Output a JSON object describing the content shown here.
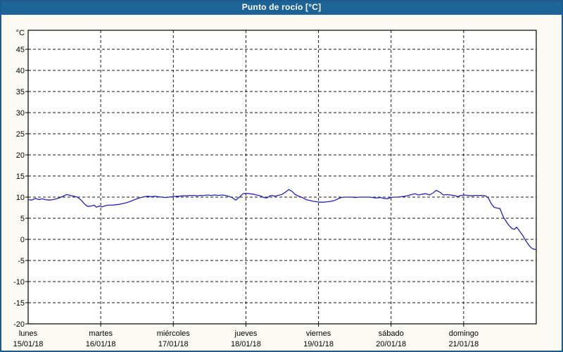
{
  "window": {
    "title": "Punto de rocío [°C]"
  },
  "colors": {
    "titlebar_bg": "#1E6396",
    "titlebar_text": "#FFFFFF",
    "window_border": "#1A5A8C",
    "page_bg": "#FBFBF3",
    "plot_bg": "#FFFFFF",
    "axis": "#000000",
    "gridline": "#1A1A1A",
    "series_line": "#2222BE"
  },
  "chart_data": {
    "type": "line",
    "title": "Punto de rocío [°C]",
    "unit_label": "°C",
    "ylabel": "°C",
    "ylim": [
      -20,
      49.5
    ],
    "y_ticks": [
      45,
      40,
      35,
      30,
      25,
      20,
      15,
      10,
      5,
      0,
      -5,
      -10,
      -15,
      -20
    ],
    "grid": "dashed",
    "legend_position": "none",
    "x_axis": {
      "days": [
        {
          "name": "lunes",
          "date": "15/01/18"
        },
        {
          "name": "martes",
          "date": "16/01/18"
        },
        {
          "name": "miércoles",
          "date": "17/01/18"
        },
        {
          "name": "jueves",
          "date": "18/01/18"
        },
        {
          "name": "viernes",
          "date": "19/01/18"
        },
        {
          "name": "sábado",
          "date": "20/01/18"
        },
        {
          "name": "domingo",
          "date": "21/01/18"
        }
      ]
    },
    "series": [
      {
        "name": "Punto de rocío",
        "color": "#2222BE",
        "points": [
          [
            0.0,
            9.4
          ],
          [
            0.05,
            9.3
          ],
          [
            0.1,
            9.7
          ],
          [
            0.15,
            9.4
          ],
          [
            0.19,
            9.6
          ],
          [
            0.24,
            9.4
          ],
          [
            0.29,
            9.3
          ],
          [
            0.34,
            9.4
          ],
          [
            0.39,
            9.6
          ],
          [
            0.44,
            9.9
          ],
          [
            0.48,
            10.2
          ],
          [
            0.53,
            10.6
          ],
          [
            0.58,
            10.4
          ],
          [
            0.63,
            10.2
          ],
          [
            0.68,
            10.0
          ],
          [
            0.73,
            9.3
          ],
          [
            0.78,
            8.3
          ],
          [
            0.82,
            7.8
          ],
          [
            0.87,
            7.9
          ],
          [
            0.91,
            8.1
          ],
          [
            0.94,
            7.6
          ],
          [
            0.98,
            7.9
          ],
          [
            1.02,
            7.7
          ],
          [
            1.07,
            8.0
          ],
          [
            1.11,
            8.1
          ],
          [
            1.16,
            8.1
          ],
          [
            1.21,
            8.2
          ],
          [
            1.26,
            8.3
          ],
          [
            1.31,
            8.5
          ],
          [
            1.36,
            8.7
          ],
          [
            1.41,
            9.0
          ],
          [
            1.45,
            9.3
          ],
          [
            1.5,
            9.6
          ],
          [
            1.55,
            9.9
          ],
          [
            1.6,
            10.1
          ],
          [
            1.65,
            10.2
          ],
          [
            1.7,
            10.1
          ],
          [
            1.75,
            10.2
          ],
          [
            1.79,
            10.1
          ],
          [
            1.84,
            10.0
          ],
          [
            1.89,
            9.9
          ],
          [
            1.94,
            10.0
          ],
          [
            1.99,
            10.1
          ],
          [
            2.04,
            10.2
          ],
          [
            2.08,
            10.2
          ],
          [
            2.13,
            10.3
          ],
          [
            2.18,
            10.3
          ],
          [
            2.23,
            10.4
          ],
          [
            2.28,
            10.4
          ],
          [
            2.33,
            10.3
          ],
          [
            2.38,
            10.4
          ],
          [
            2.42,
            10.4
          ],
          [
            2.47,
            10.5
          ],
          [
            2.52,
            10.4
          ],
          [
            2.57,
            10.5
          ],
          [
            2.62,
            10.4
          ],
          [
            2.67,
            10.5
          ],
          [
            2.72,
            10.4
          ],
          [
            2.76,
            10.2
          ],
          [
            2.81,
            9.9
          ],
          [
            2.86,
            9.3
          ],
          [
            2.91,
            10.0
          ],
          [
            2.96,
            10.8
          ],
          [
            3.01,
            10.9
          ],
          [
            3.05,
            10.8
          ],
          [
            3.1,
            10.7
          ],
          [
            3.15,
            10.5
          ],
          [
            3.2,
            10.3
          ],
          [
            3.25,
            9.9
          ],
          [
            3.29,
            9.8
          ],
          [
            3.33,
            10.3
          ],
          [
            3.36,
            10.4
          ],
          [
            3.4,
            10.2
          ],
          [
            3.44,
            10.4
          ],
          [
            3.49,
            10.6
          ],
          [
            3.54,
            11.1
          ],
          [
            3.59,
            11.8
          ],
          [
            3.64,
            11.3
          ],
          [
            3.68,
            10.6
          ],
          [
            3.73,
            10.2
          ],
          [
            3.78,
            9.9
          ],
          [
            3.83,
            9.4
          ],
          [
            3.88,
            9.2
          ],
          [
            3.93,
            9.0
          ],
          [
            3.98,
            8.9
          ],
          [
            4.02,
            8.8
          ],
          [
            4.07,
            8.8
          ],
          [
            4.12,
            8.9
          ],
          [
            4.17,
            9.0
          ],
          [
            4.22,
            9.2
          ],
          [
            4.27,
            9.6
          ],
          [
            4.31,
            9.9
          ],
          [
            4.36,
            10.0
          ],
          [
            4.41,
            10.0
          ],
          [
            4.46,
            10.0
          ],
          [
            4.51,
            9.9
          ],
          [
            4.56,
            10.0
          ],
          [
            4.61,
            10.0
          ],
          [
            4.65,
            10.0
          ],
          [
            4.7,
            10.0
          ],
          [
            4.75,
            9.9
          ],
          [
            4.8,
            9.8
          ],
          [
            4.85,
            9.9
          ],
          [
            4.9,
            9.7
          ],
          [
            4.95,
            9.6
          ],
          [
            4.99,
            9.9
          ],
          [
            5.04,
            10.0
          ],
          [
            5.09,
            10.0
          ],
          [
            5.14,
            10.1
          ],
          [
            5.19,
            10.2
          ],
          [
            5.24,
            10.4
          ],
          [
            5.28,
            10.6
          ],
          [
            5.33,
            10.8
          ],
          [
            5.38,
            10.5
          ],
          [
            5.43,
            10.7
          ],
          [
            5.48,
            10.8
          ],
          [
            5.53,
            10.5
          ],
          [
            5.58,
            11.0
          ],
          [
            5.62,
            11.6
          ],
          [
            5.67,
            11.2
          ],
          [
            5.72,
            10.5
          ],
          [
            5.77,
            10.6
          ],
          [
            5.82,
            10.5
          ],
          [
            5.87,
            10.4
          ],
          [
            5.92,
            10.1
          ],
          [
            5.96,
            10.4
          ],
          [
            6.01,
            10.5
          ],
          [
            6.06,
            10.4
          ],
          [
            6.11,
            10.3
          ],
          [
            6.16,
            10.4
          ],
          [
            6.21,
            10.4
          ],
          [
            6.25,
            10.4
          ],
          [
            6.3,
            10.3
          ],
          [
            6.34,
            9.8
          ],
          [
            6.38,
            8.4
          ],
          [
            6.42,
            7.6
          ],
          [
            6.46,
            7.4
          ],
          [
            6.5,
            7.3
          ],
          [
            6.53,
            6.0
          ],
          [
            6.55,
            5.2
          ],
          [
            6.58,
            4.4
          ],
          [
            6.61,
            3.6
          ],
          [
            6.64,
            3.0
          ],
          [
            6.67,
            2.5
          ],
          [
            6.7,
            2.4
          ],
          [
            6.73,
            2.9
          ],
          [
            6.76,
            2.2
          ],
          [
            6.79,
            1.5
          ],
          [
            6.82,
            0.8
          ],
          [
            6.84,
            0.1
          ],
          [
            6.87,
            -0.7
          ],
          [
            6.9,
            -1.4
          ],
          [
            6.93,
            -2.0
          ],
          [
            6.96,
            -2.3
          ],
          [
            6.99,
            -2.4
          ]
        ]
      }
    ]
  }
}
